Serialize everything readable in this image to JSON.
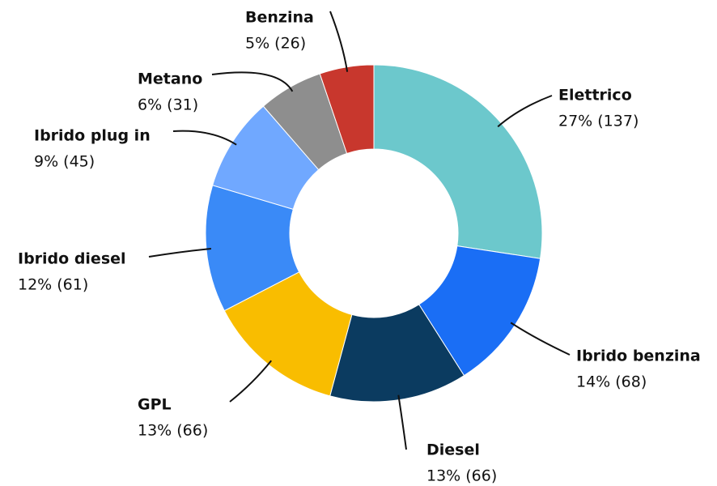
{
  "chart_data": {
    "type": "donut",
    "categories": [
      "Elettrico",
      "Ibrido benzina",
      "Diesel",
      "GPL",
      "Ibrido diesel",
      "Ibrido plug in",
      "Metano",
      "Benzina"
    ],
    "values": [
      137,
      68,
      66,
      66,
      61,
      45,
      31,
      26
    ],
    "value_labels": [
      "27% (137)",
      "14% (68)",
      "13% (66)",
      "13% (66)",
      "12% (61)",
      "9% (45)",
      "6% (31)",
      "5% (26)"
    ],
    "colors": [
      "#6cc8cc",
      "#1a6ef5",
      "#0b3b60",
      "#f9bd00",
      "#3a8af7",
      "#70a8ff",
      "#8e8e8e",
      "#c8372d"
    ]
  }
}
